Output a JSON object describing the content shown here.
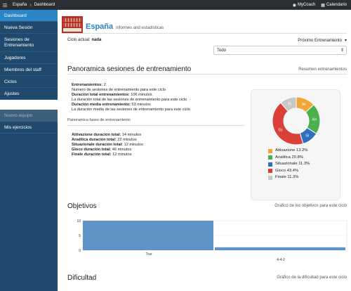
{
  "topbar": {
    "crumbs": [
      "España",
      "Dashboard"
    ],
    "mycoach": "MyCoach",
    "calendario": "Calendario"
  },
  "sidebar": {
    "items": [
      {
        "label": "Dashboard"
      },
      {
        "label": "Nueva Sesión"
      },
      {
        "label": "Sesiones de Entrenamiento"
      },
      {
        "label": "Jugadores"
      },
      {
        "label": "Miembros del staff"
      },
      {
        "label": "Ciclos"
      },
      {
        "label": "Ajustes"
      }
    ],
    "nuevo_equipo": "Nuevo equipo",
    "mis_ejercicios": "Mis ejercicios"
  },
  "team": {
    "name": "España",
    "subtitle": "informes and estadísticas"
  },
  "ciclo": {
    "label": "Ciclo actual:",
    "value": "nada"
  },
  "proximo": {
    "label": "Próximo Entrenamiento",
    "select_value": "Todo"
  },
  "panoramica": {
    "title": "Panoramica sesiones de entrenamiento",
    "link": "Resumen entrenamientos",
    "stats": [
      {
        "bold": "Entrenamientos:",
        "value": " 2"
      },
      {
        "bold": "",
        "value": "Numero de sesiones de entrenamiento para este ciclo"
      },
      {
        "bold": "Duración total entrenamientos:",
        "value": " 106 minutos"
      },
      {
        "bold": "",
        "value": "La duración total de las sesiones de entrenamiento para este ciclo"
      },
      {
        "bold": "Duración media entrenamiento:",
        "value": " 53 minutos"
      },
      {
        "bold": "",
        "value": "La duración media de las sesiones de entrenamiento para este ciclo"
      }
    ],
    "fases_label": "Panoramica fases de entrenamiento",
    "fases": [
      {
        "bold": "Attivazione duración total:",
        "value": " 14 minutos"
      },
      {
        "bold": "Analitica duración total:",
        "value": " 22 minutos"
      },
      {
        "bold": "Situazionale duración total:",
        "value": " 12 minutos"
      },
      {
        "bold": "Gioco duración total:",
        "value": " 46 minutos"
      },
      {
        "bold": "Finale duración total:",
        "value": " 12 minutos"
      }
    ]
  },
  "chart_data": [
    {
      "type": "pie",
      "categories": [
        "Attivazione",
        "Analitica",
        "Situazionale",
        "Gioco",
        "Finale"
      ],
      "labels_short": [
        "At",
        "An",
        "Si",
        "Gi",
        "Fi"
      ],
      "values": [
        13.2,
        20.8,
        11.3,
        43.4,
        11.3
      ],
      "colors": [
        "#f0a639",
        "#4caf50",
        "#2f6fc0",
        "#d9403a",
        "#c8c8c8"
      ],
      "legend": [
        "Attivazione 13.2%",
        "Analitica 20.8%",
        "Situazionale 11.3%",
        "Gioco 43.4%",
        "Finale 11.3%"
      ]
    },
    {
      "type": "bar",
      "title": "Objetivos",
      "categories": [
        "Trar",
        "4-4-2"
      ],
      "values": [
        10,
        1
      ],
      "ylim": [
        0,
        10
      ],
      "yticks": [
        10,
        5,
        0
      ],
      "color": "#5f93c8"
    }
  ],
  "objetivos": {
    "title": "Objetivos",
    "link": "Grafico de los objetivos para este ciclo"
  },
  "dificultad": {
    "title": "Dificultad",
    "link": "Gráfico de la dificultad para este ciclo"
  }
}
